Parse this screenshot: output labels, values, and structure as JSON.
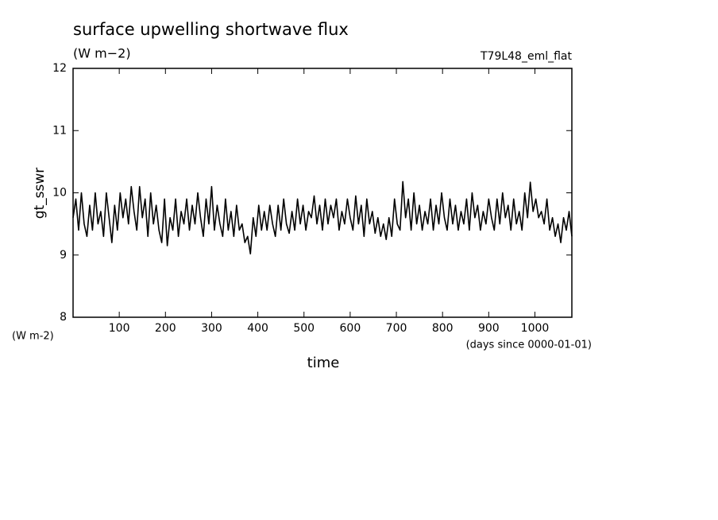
{
  "chart_data": {
    "type": "line",
    "title": "surface upwelling shortwave flux",
    "subtitle": "(W m−2)",
    "annotation": "T79L48_eml_flat",
    "y_label": "gt_sswr",
    "y_unit": "(W m-2)",
    "x_label": "time",
    "x_unit": "(days since 0000-01-01)",
    "color": "#000000",
    "xlim": [
      0,
      1080
    ],
    "ylim": [
      8,
      12
    ],
    "xticks": [
      100,
      200,
      300,
      400,
      500,
      600,
      700,
      800,
      900,
      1000
    ],
    "yticks": [
      8,
      9,
      10,
      11,
      12
    ],
    "x": [
      0,
      6,
      12,
      18,
      24,
      30,
      36,
      42,
      48,
      54,
      60,
      66,
      72,
      78,
      84,
      90,
      96,
      102,
      108,
      114,
      120,
      126,
      132,
      138,
      144,
      150,
      156,
      162,
      168,
      174,
      180,
      186,
      192,
      198,
      204,
      210,
      216,
      222,
      228,
      234,
      240,
      246,
      252,
      258,
      264,
      270,
      276,
      282,
      288,
      294,
      300,
      306,
      312,
      318,
      324,
      330,
      336,
      342,
      348,
      354,
      360,
      366,
      372,
      378,
      384,
      390,
      396,
      402,
      408,
      414,
      420,
      426,
      432,
      438,
      444,
      450,
      456,
      462,
      468,
      474,
      480,
      486,
      492,
      498,
      504,
      510,
      516,
      522,
      528,
      534,
      540,
      546,
      552,
      558,
      564,
      570,
      576,
      582,
      588,
      594,
      600,
      606,
      612,
      618,
      624,
      630,
      636,
      642,
      648,
      654,
      660,
      666,
      672,
      678,
      684,
      690,
      696,
      702,
      708,
      714,
      720,
      726,
      732,
      738,
      744,
      750,
      756,
      762,
      768,
      774,
      780,
      786,
      792,
      798,
      804,
      810,
      816,
      822,
      828,
      834,
      840,
      846,
      852,
      858,
      864,
      870,
      876,
      882,
      888,
      894,
      900,
      906,
      912,
      918,
      924,
      930,
      936,
      942,
      948,
      954,
      960,
      966,
      972,
      978,
      984,
      990,
      996,
      1002,
      1008,
      1014,
      1020,
      1026,
      1032,
      1038,
      1044,
      1050,
      1056,
      1062,
      1068,
      1074,
      1080
    ],
    "values": [
      9.6,
      9.9,
      9.4,
      10.0,
      9.5,
      9.3,
      9.8,
      9.4,
      10.0,
      9.5,
      9.7,
      9.3,
      10.0,
      9.6,
      9.2,
      9.8,
      9.4,
      10.0,
      9.6,
      9.9,
      9.5,
      10.1,
      9.7,
      9.4,
      10.1,
      9.6,
      9.9,
      9.3,
      10.0,
      9.5,
      9.8,
      9.4,
      9.2,
      9.9,
      9.15,
      9.6,
      9.4,
      9.9,
      9.3,
      9.7,
      9.5,
      9.9,
      9.4,
      9.8,
      9.5,
      10.0,
      9.6,
      9.3,
      9.9,
      9.5,
      10.1,
      9.4,
      9.8,
      9.5,
      9.3,
      9.9,
      9.4,
      9.7,
      9.3,
      9.8,
      9.4,
      9.5,
      9.2,
      9.3,
      9.02,
      9.6,
      9.3,
      9.8,
      9.4,
      9.7,
      9.4,
      9.8,
      9.5,
      9.3,
      9.8,
      9.4,
      9.9,
      9.5,
      9.35,
      9.7,
      9.4,
      9.9,
      9.5,
      9.8,
      9.4,
      9.7,
      9.6,
      9.95,
      9.5,
      9.8,
      9.4,
      9.9,
      9.5,
      9.8,
      9.6,
      9.9,
      9.4,
      9.7,
      9.5,
      9.9,
      9.6,
      9.4,
      9.95,
      9.5,
      9.8,
      9.3,
      9.9,
      9.5,
      9.7,
      9.35,
      9.6,
      9.3,
      9.5,
      9.25,
      9.6,
      9.3,
      9.9,
      9.5,
      9.4,
      10.18,
      9.6,
      9.9,
      9.4,
      10.0,
      9.5,
      9.8,
      9.4,
      9.7,
      9.5,
      9.9,
      9.4,
      9.8,
      9.5,
      10.0,
      9.6,
      9.4,
      9.9,
      9.5,
      9.8,
      9.4,
      9.7,
      9.5,
      9.9,
      9.4,
      10.0,
      9.6,
      9.8,
      9.4,
      9.7,
      9.5,
      9.9,
      9.6,
      9.4,
      9.9,
      9.5,
      10.0,
      9.6,
      9.8,
      9.4,
      9.9,
      9.5,
      9.7,
      9.4,
      10.0,
      9.6,
      10.17,
      9.7,
      9.9,
      9.6,
      9.7,
      9.5,
      9.9,
      9.4,
      9.6,
      9.3,
      9.5,
      9.2,
      9.6,
      9.4,
      9.7,
      9.3
    ]
  }
}
